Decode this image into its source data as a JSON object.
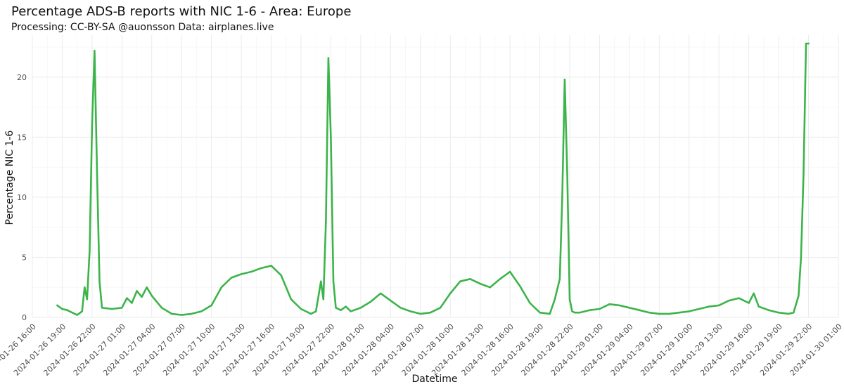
{
  "chart_data": {
    "type": "line",
    "title": "Percentage ADS-B reports with NIC 1-6 - Area: Europe",
    "subtitle": "Processing: CC-BY-SA @auonsson Data: airplanes.live",
    "xlabel": "Datetime",
    "ylabel": "Percentage NIC 1-6",
    "x_type": "datetime",
    "xlim": [
      "2024-01-26 16:00",
      "2024-01-30 01:00"
    ],
    "ylim": [
      0,
      23.5
    ],
    "y_ticks": [
      0,
      5,
      10,
      15,
      20
    ],
    "x_ticks": [
      "2024-01-26 16:00",
      "2024-01-26 19:00",
      "2024-01-26 22:00",
      "2024-01-27 01:00",
      "2024-01-27 04:00",
      "2024-01-27 07:00",
      "2024-01-27 10:00",
      "2024-01-27 13:00",
      "2024-01-27 16:00",
      "2024-01-27 19:00",
      "2024-01-27 22:00",
      "2024-01-28 01:00",
      "2024-01-28 04:00",
      "2024-01-28 07:00",
      "2024-01-28 10:00",
      "2024-01-28 13:00",
      "2024-01-28 16:00",
      "2024-01-28 19:00",
      "2024-01-28 22:00",
      "2024-01-29 01:00",
      "2024-01-29 04:00",
      "2024-01-29 07:00",
      "2024-01-29 10:00",
      "2024-01-29 13:00",
      "2024-01-29 16:00",
      "2024-01-29 19:00",
      "2024-01-29 22:00",
      "2024-01-30 01:00"
    ],
    "grid": true,
    "legend": "none",
    "colors": {
      "line": "#3cb44b",
      "background": "#ffffff"
    },
    "series": [
      {
        "x": [
          "2024-01-26 18:30",
          "2024-01-26 19:00",
          "2024-01-26 19:30",
          "2024-01-26 20:00",
          "2024-01-26 20:30",
          "2024-01-26 21:00",
          "2024-01-26 21:15",
          "2024-01-26 21:30",
          "2024-01-26 21:45",
          "2024-01-26 22:00",
          "2024-01-26 22:15",
          "2024-01-26 22:30",
          "2024-01-26 22:45",
          "2024-01-26 23:00",
          "2024-01-27 00:00",
          "2024-01-27 01:00",
          "2024-01-27 01:30",
          "2024-01-27 02:00",
          "2024-01-27 02:30",
          "2024-01-27 03:00",
          "2024-01-27 03:30",
          "2024-01-27 04:00",
          "2024-01-27 04:30",
          "2024-01-27 05:00",
          "2024-01-27 06:00",
          "2024-01-27 07:00",
          "2024-01-27 08:00",
          "2024-01-27 09:00",
          "2024-01-27 10:00",
          "2024-01-27 11:00",
          "2024-01-27 12:00",
          "2024-01-27 13:00",
          "2024-01-27 14:00",
          "2024-01-27 15:00",
          "2024-01-27 16:00",
          "2024-01-27 17:00",
          "2024-01-27 18:00",
          "2024-01-27 19:00",
          "2024-01-27 20:00",
          "2024-01-27 20:30",
          "2024-01-27 21:00",
          "2024-01-27 21:15",
          "2024-01-27 21:30",
          "2024-01-27 21:45",
          "2024-01-27 22:00",
          "2024-01-27 22:15",
          "2024-01-27 22:30",
          "2024-01-27 23:00",
          "2024-01-27 23:30",
          "2024-01-28 00:00",
          "2024-01-28 01:00",
          "2024-01-28 02:00",
          "2024-01-28 03:00",
          "2024-01-28 04:00",
          "2024-01-28 05:00",
          "2024-01-28 06:00",
          "2024-01-28 07:00",
          "2024-01-28 08:00",
          "2024-01-28 09:00",
          "2024-01-28 10:00",
          "2024-01-28 11:00",
          "2024-01-28 12:00",
          "2024-01-28 13:00",
          "2024-01-28 14:00",
          "2024-01-28 15:00",
          "2024-01-28 16:00",
          "2024-01-28 17:00",
          "2024-01-28 18:00",
          "2024-01-28 19:00",
          "2024-01-28 20:00",
          "2024-01-28 20:30",
          "2024-01-28 21:00",
          "2024-01-28 21:15",
          "2024-01-28 21:30",
          "2024-01-28 21:45",
          "2024-01-28 22:00",
          "2024-01-28 22:15",
          "2024-01-28 22:30",
          "2024-01-28 23:00",
          "2024-01-29 00:00",
          "2024-01-29 01:00",
          "2024-01-29 02:00",
          "2024-01-29 03:00",
          "2024-01-29 04:00",
          "2024-01-29 05:00",
          "2024-01-29 06:00",
          "2024-01-29 07:00",
          "2024-01-29 08:00",
          "2024-01-29 09:00",
          "2024-01-29 10:00",
          "2024-01-29 11:00",
          "2024-01-29 12:00",
          "2024-01-29 13:00",
          "2024-01-29 14:00",
          "2024-01-29 15:00",
          "2024-01-29 16:00",
          "2024-01-29 16:30",
          "2024-01-29 17:00",
          "2024-01-29 18:00",
          "2024-01-29 19:00",
          "2024-01-29 20:00",
          "2024-01-29 20:30",
          "2024-01-29 21:00",
          "2024-01-29 21:15",
          "2024-01-29 21:30",
          "2024-01-29 21:45",
          "2024-01-29 22:00"
        ],
        "y": [
          1.0,
          0.7,
          0.6,
          0.4,
          0.2,
          0.5,
          2.5,
          1.5,
          5.5,
          16.0,
          22.2,
          12.0,
          3.0,
          0.8,
          0.7,
          0.8,
          1.6,
          1.2,
          2.2,
          1.7,
          2.5,
          1.8,
          1.3,
          0.8,
          0.3,
          0.2,
          0.3,
          0.5,
          1.0,
          2.5,
          3.3,
          3.6,
          3.8,
          4.1,
          4.3,
          3.5,
          1.5,
          0.7,
          0.3,
          0.5,
          3.0,
          1.5,
          8.0,
          21.6,
          15.0,
          3.0,
          0.8,
          0.6,
          0.9,
          0.5,
          0.8,
          1.3,
          2.0,
          1.4,
          0.8,
          0.5,
          0.3,
          0.4,
          0.8,
          2.0,
          3.0,
          3.2,
          2.8,
          2.5,
          3.2,
          3.8,
          2.6,
          1.2,
          0.4,
          0.3,
          1.5,
          3.2,
          10.0,
          19.8,
          12.0,
          1.5,
          0.5,
          0.4,
          0.4,
          0.6,
          0.7,
          1.1,
          1.0,
          0.8,
          0.6,
          0.4,
          0.3,
          0.3,
          0.4,
          0.5,
          0.7,
          0.9,
          1.0,
          1.4,
          1.6,
          1.2,
          2.0,
          0.9,
          0.6,
          0.4,
          0.3,
          0.4,
          1.8,
          5.0,
          12.0,
          22.8,
          22.8
        ]
      }
    ]
  }
}
